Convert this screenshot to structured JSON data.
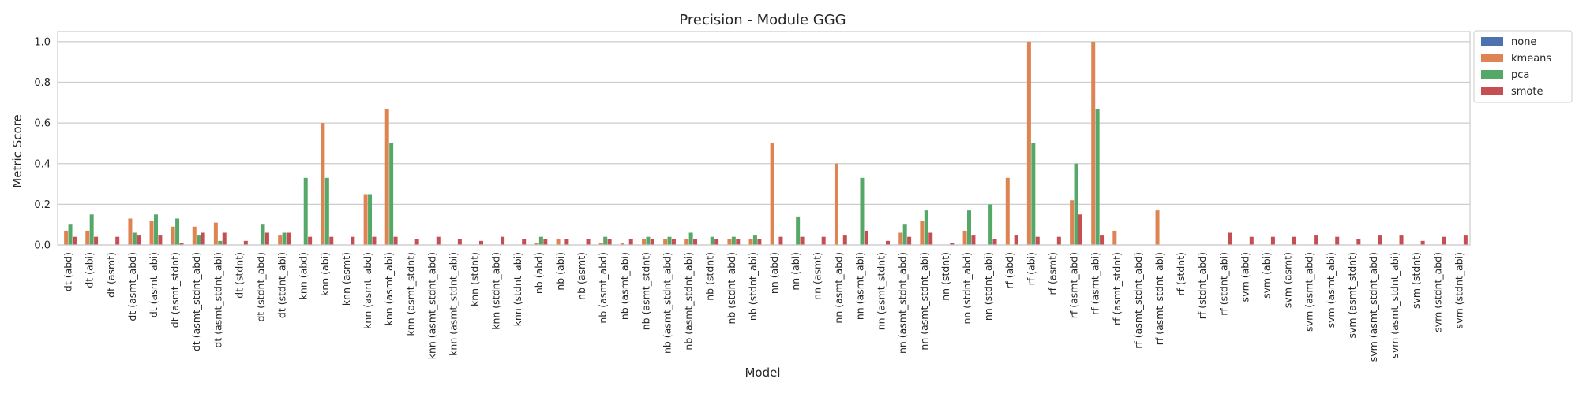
{
  "chart_data": {
    "type": "bar",
    "title": "Precision - Module GGG",
    "xlabel": "Model",
    "ylabel": "Metric Score",
    "ylim": [
      0,
      1.05
    ],
    "yticks": [
      "0.0",
      "0.2",
      "0.4",
      "0.6",
      "0.8",
      "1.0"
    ],
    "grid": true,
    "legend_position": "outside-top-right",
    "categories": [
      "dt (abd)",
      "dt (abi)",
      "dt (asmt)",
      "dt (asmt_abd)",
      "dt (asmt_abi)",
      "dt (asmt_stdnt)",
      "dt (asmt_stdnt_abd)",
      "dt (asmt_stdnt_abi)",
      "dt (stdnt)",
      "dt (stdnt_abd)",
      "dt (stdnt_abi)",
      "knn (abd)",
      "knn (abi)",
      "knn (asmt)",
      "knn (asmt_abd)",
      "knn (asmt_abi)",
      "knn (asmt_stdnt)",
      "knn (asmt_stdnt_abd)",
      "knn (asmt_stdnt_abi)",
      "knn (stdnt)",
      "knn (stdnt_abd)",
      "knn (stdnt_abi)",
      "nb (abd)",
      "nb (abi)",
      "nb (asmt)",
      "nb (asmt_abd)",
      "nb (asmt_abi)",
      "nb (asmt_stdnt)",
      "nb (asmt_stdnt_abd)",
      "nb (asmt_stdnt_abi)",
      "nb (stdnt)",
      "nb (stdnt_abd)",
      "nb (stdnt_abi)",
      "nn (abd)",
      "nn (abi)",
      "nn (asmt)",
      "nn (asmt_abd)",
      "nn (asmt_abi)",
      "nn (asmt_stdnt)",
      "nn (asmt_stdnt_abd)",
      "nn (asmt_stdnt_abi)",
      "nn (stdnt)",
      "nn (stdnt_abd)",
      "nn (stdnt_abi)",
      "rf (abd)",
      "rf (abi)",
      "rf (asmt)",
      "rf (asmt_abd)",
      "rf (asmt_abi)",
      "rf (asmt_stdnt)",
      "rf (asmt_stdnt_abd)",
      "rf (asmt_stdnt_abi)",
      "rf (stdnt)",
      "rf (stdnt_abd)",
      "rf (stdnt_abi)",
      "svm (abd)",
      "svm (abi)",
      "svm (asmt)",
      "svm (asmt_abd)",
      "svm (asmt_abi)",
      "svm (asmt_stdnt)",
      "svm (asmt_stdnt_abd)",
      "svm (asmt_stdnt_abi)",
      "svm (stdnt)",
      "svm (stdnt_abd)",
      "svm (stdnt_abi)"
    ],
    "series": [
      {
        "name": "none",
        "color": "#4c72b0",
        "values": [
          0,
          0,
          0,
          0,
          0,
          0,
          0,
          0,
          0,
          0,
          0,
          0,
          0,
          0,
          0,
          0,
          0,
          0,
          0,
          0,
          0,
          0,
          0,
          0,
          0,
          0,
          0,
          0,
          0,
          0,
          0,
          0,
          0,
          0,
          0,
          0,
          0,
          0,
          0,
          0,
          0,
          0,
          0,
          0,
          0,
          0,
          0,
          0,
          0,
          0,
          0,
          0,
          0,
          0,
          0,
          0,
          0,
          0,
          0,
          0,
          0,
          0,
          0,
          0,
          0,
          0
        ]
      },
      {
        "name": "kmeans",
        "color": "#dd8452",
        "values": [
          0.07,
          0.07,
          0,
          0.13,
          0.12,
          0.09,
          0.09,
          0.11,
          0,
          0,
          0.05,
          0,
          0.6,
          0,
          0.25,
          0.67,
          0,
          0,
          0,
          0,
          0,
          0,
          0.01,
          0.03,
          0,
          0.01,
          0.01,
          0.03,
          0.03,
          0.03,
          0,
          0.03,
          0.03,
          0.5,
          0,
          0,
          0.4,
          0,
          0,
          0.06,
          0.12,
          0,
          0.07,
          0,
          0.33,
          1.0,
          0,
          0.22,
          1.0,
          0.07,
          0,
          0.17,
          0,
          0,
          0,
          0,
          0,
          0,
          0,
          0,
          0,
          0,
          0,
          0,
          0,
          0
        ]
      },
      {
        "name": "pca",
        "color": "#55a868",
        "values": [
          0.1,
          0.15,
          0,
          0.06,
          0.15,
          0.13,
          0.05,
          0.02,
          0,
          0.1,
          0.06,
          0.33,
          0.33,
          0,
          0.25,
          0.5,
          0,
          0,
          0,
          0,
          0,
          0,
          0.04,
          0,
          0,
          0.04,
          0,
          0.04,
          0.04,
          0.06,
          0.04,
          0.04,
          0.05,
          0,
          0.14,
          0,
          0,
          0.33,
          0,
          0.1,
          0.17,
          0,
          0.17,
          0.2,
          0,
          0.5,
          0,
          0.4,
          0.67,
          0,
          0,
          0,
          0,
          0,
          0,
          0,
          0,
          0,
          0,
          0,
          0,
          0,
          0,
          0,
          0,
          0
        ]
      },
      {
        "name": "smote",
        "color": "#c44e52",
        "values": [
          0.04,
          0.04,
          0.04,
          0.05,
          0.05,
          0.01,
          0.06,
          0.06,
          0.02,
          0.06,
          0.06,
          0.04,
          0.04,
          0.04,
          0.04,
          0.04,
          0.03,
          0.04,
          0.03,
          0.02,
          0.04,
          0.03,
          0.03,
          0.03,
          0.03,
          0.03,
          0.03,
          0.03,
          0.03,
          0.03,
          0.03,
          0.03,
          0.03,
          0.04,
          0.04,
          0.04,
          0.05,
          0.07,
          0.02,
          0.04,
          0.06,
          0.01,
          0.05,
          0.03,
          0.05,
          0.04,
          0.04,
          0.15,
          0.05,
          0,
          0,
          0,
          0,
          0,
          0.06,
          0.04,
          0.04,
          0.04,
          0.05,
          0.04,
          0.03,
          0.05,
          0.05,
          0.02,
          0.04,
          0.05
        ]
      }
    ]
  }
}
